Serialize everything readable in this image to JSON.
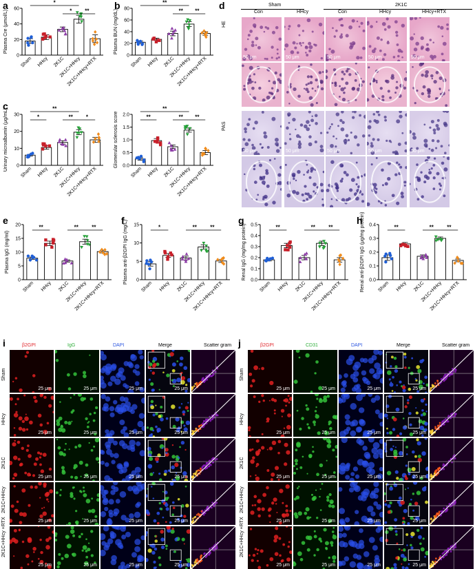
{
  "panels": {
    "a": "a",
    "b": "b",
    "c": "c",
    "d": "d",
    "e": "e",
    "f": "f",
    "g": "g",
    "h": "h",
    "i": "i",
    "j": "j"
  },
  "groups": [
    "Sham",
    "HHcy",
    "2K1C",
    "2K1C+HHcy",
    "2K1C+HHcy+RTX"
  ],
  "colors": {
    "Sham": "#1f5fd6",
    "HHcy": "#c8202a",
    "2K1C": "#8e3fa8",
    "2K1C+HHcy": "#27a23a",
    "2K1C+HHcy+RTX": "#f08c1c"
  },
  "chart_data": [
    {
      "id": "a",
      "type": "bar",
      "categories": [
        "Sham",
        "HHcy",
        "2K1C",
        "2K1C+HHcy",
        "2K1C+HHcy+RTX"
      ],
      "values": [
        18,
        23,
        33,
        46,
        21
      ],
      "errors": [
        3,
        3,
        3,
        5,
        5
      ],
      "ylabel": "Plasma Cre (μmol/L)",
      "ylim": [
        0,
        60
      ],
      "yticks": [
        0,
        20,
        40,
        60
      ],
      "markers": [
        "circle",
        "square",
        "triangle-up",
        "triangle-down",
        "diamond"
      ],
      "sig": [
        {
          "from": 0,
          "to": 3,
          "text": "*"
        },
        {
          "from": 2,
          "to": 3,
          "text": "*"
        },
        {
          "from": 3,
          "to": 4,
          "text": "**"
        }
      ]
    },
    {
      "id": "b",
      "type": "bar",
      "categories": [
        "Sham",
        "HHcy",
        "2K1C",
        "2K1C+HHcy",
        "2K1C+HHcy+RTX"
      ],
      "values": [
        22,
        27,
        37,
        53,
        37
      ],
      "errors": [
        2,
        2,
        4,
        4,
        3
      ],
      "ylabel": "Plasma BUN (mg/dL)",
      "ylim": [
        0,
        80
      ],
      "yticks": [
        0,
        20,
        40,
        60,
        80
      ],
      "markers": [
        "circle",
        "square",
        "triangle-up",
        "triangle-down",
        "diamond"
      ],
      "sig": [
        {
          "from": 0,
          "to": 3,
          "text": "**"
        },
        {
          "from": 2,
          "to": 3,
          "text": "**"
        },
        {
          "from": 3,
          "to": 4,
          "text": "**"
        }
      ]
    },
    {
      "id": "c1",
      "type": "bar",
      "categories": [
        "Sham",
        "HHcy",
        "2K1C",
        "2K1C+HHcy",
        "2K1C+HHcy+RTX"
      ],
      "values": [
        6,
        10.5,
        13.5,
        19.5,
        15
      ],
      "errors": [
        0.5,
        1,
        1,
        1.5,
        1.5
      ],
      "ylabel": "Urinary microalbumin (μg/mL)",
      "ylim": [
        0,
        30
      ],
      "yticks": [
        0,
        10,
        20,
        30
      ],
      "markers": [
        "circle",
        "square",
        "triangle-up",
        "triangle-down",
        "diamond"
      ],
      "sig": [
        {
          "from": 0,
          "to": 3,
          "text": "**"
        },
        {
          "from": 0,
          "to": 1,
          "text": "*"
        },
        {
          "from": 2,
          "to": 3,
          "text": "**"
        },
        {
          "from": 3,
          "to": 4,
          "text": "*"
        }
      ]
    },
    {
      "id": "c2",
      "type": "bar",
      "categories": [
        "Sham",
        "HHcy",
        "2K1C",
        "2K1C+HHcy",
        "2K1C+HHcy+RTX"
      ],
      "values": [
        0.25,
        0.97,
        0.73,
        1.38,
        0.5
      ],
      "errors": [
        0.05,
        0.08,
        0.07,
        0.08,
        0.08
      ],
      "ylabel": "Glomerular sclerosis score",
      "ylim": [
        0,
        2.0
      ],
      "yticks": [
        0.0,
        0.5,
        1.0,
        1.5,
        2.0
      ],
      "markers": [
        "circle",
        "square",
        "triangle-up",
        "triangle-down",
        "diamond"
      ],
      "sig": [
        {
          "from": 0,
          "to": 3,
          "text": "**"
        },
        {
          "from": 0,
          "to": 1,
          "text": "**"
        },
        {
          "from": 2,
          "to": 3,
          "text": "**"
        },
        {
          "from": 3,
          "to": 4,
          "text": "**"
        }
      ]
    },
    {
      "id": "e",
      "type": "bar",
      "categories": [
        "Sham",
        "HHcy",
        "2K1C",
        "2K1C+HHcy",
        "2K1C+HHcy+RTX"
      ],
      "values": [
        7.8,
        13.2,
        6.8,
        13.8,
        10.2
      ],
      "errors": [
        0.4,
        0.8,
        0.4,
        0.9,
        0.5
      ],
      "ylabel": "Plasma IgG (mg/ml)",
      "ylim": [
        0,
        20
      ],
      "yticks": [
        0,
        5,
        10,
        15,
        20
      ],
      "markers": [
        "circle",
        "square",
        "triangle-up",
        "triangle-down",
        "diamond"
      ],
      "sig": [
        {
          "from": 0,
          "to": 1,
          "text": "**"
        },
        {
          "from": 2,
          "to": 3,
          "text": "**"
        },
        {
          "from": 3,
          "to": 4,
          "text": "**"
        }
      ]
    },
    {
      "id": "f",
      "type": "bar",
      "categories": [
        "Sham",
        "HHcy",
        "2K1C",
        "2K1C+HHcy",
        "2K1C+HHcy+RTX"
      ],
      "values": [
        4.3,
        6.6,
        5.9,
        8.9,
        5.1
      ],
      "errors": [
        0.6,
        0.5,
        0.5,
        0.6,
        0.4
      ],
      "ylabel": "Plasma anti-β2GPI IgG (mg/L)",
      "ylim": [
        0,
        15
      ],
      "yticks": [
        0,
        5,
        10,
        15
      ],
      "markers": [
        "circle",
        "square",
        "triangle-up",
        "triangle-down",
        "diamond"
      ],
      "sig": [
        {
          "from": 0,
          "to": 1,
          "text": "*"
        },
        {
          "from": 2,
          "to": 3,
          "text": "**"
        },
        {
          "from": 3,
          "to": 4,
          "text": "**"
        }
      ]
    },
    {
      "id": "g",
      "type": "bar",
      "categories": [
        "Sham",
        "HHcy",
        "2K1C",
        "2K1C+HHcy",
        "2K1C+HHcy+RTX"
      ],
      "values": [
        0.18,
        0.31,
        0.2,
        0.33,
        0.18
      ],
      "errors": [
        0.01,
        0.02,
        0.02,
        0.02,
        0.02
      ],
      "ylabel": "Renal IgG (mg/mg protein)",
      "ylim": [
        0,
        0.5
      ],
      "yticks": [
        0.0,
        0.1,
        0.2,
        0.3,
        0.4,
        0.5
      ],
      "markers": [
        "circle",
        "square",
        "triangle-up",
        "triangle-down",
        "diamond"
      ],
      "sig": [
        {
          "from": 0,
          "to": 1,
          "text": "**"
        },
        {
          "from": 2,
          "to": 3,
          "text": "**"
        },
        {
          "from": 3,
          "to": 4,
          "text": "**"
        }
      ]
    },
    {
      "id": "h",
      "type": "bar",
      "categories": [
        "Sham",
        "HHcy",
        "2K1C",
        "2K1C+HHcy",
        "2K1C+HHcy+RTX"
      ],
      "values": [
        0.16,
        0.26,
        0.17,
        0.3,
        0.14
      ],
      "errors": [
        0.02,
        0.01,
        0.01,
        0.01,
        0.01
      ],
      "ylabel": "Renal anti-β2GPI IgG (μg/mg protein)",
      "ylim": [
        0,
        0.4
      ],
      "yticks": [
        0.0,
        0.1,
        0.2,
        0.3,
        0.4
      ],
      "markers": [
        "circle",
        "square",
        "triangle-up",
        "triangle-down",
        "diamond"
      ],
      "sig": [
        {
          "from": 0,
          "to": 1,
          "text": "**"
        },
        {
          "from": 2,
          "to": 3,
          "text": "**"
        },
        {
          "from": 3,
          "to": 4,
          "text": "**"
        }
      ]
    }
  ],
  "histology": {
    "sham_label": "Sham",
    "model_label": "2K1C",
    "columns": [
      "Con",
      "HHcy",
      "Con",
      "HHcy",
      "HHcy+RTX"
    ],
    "rows": [
      "HE",
      "PAS"
    ],
    "scale": "50 μm"
  },
  "if_i": {
    "columns": [
      "β2GPI",
      "IgG",
      "DAPI",
      "Merge",
      "Scatter gram"
    ],
    "column_colors": [
      "#e0262b",
      "#2fae3a",
      "#2a55e0",
      "#000000",
      "#000000"
    ],
    "rows": [
      "Sham",
      "HHcy",
      "2K1C",
      "2K1C+HHcy",
      "2K1C+HHcy +RTX"
    ],
    "scale": "25 μm"
  },
  "if_j": {
    "columns": [
      "β2GPI",
      "CD31",
      "DAPI",
      "Merge",
      "Scatter gram"
    ],
    "column_colors": [
      "#e0262b",
      "#2fae3a",
      "#2a55e0",
      "#000000",
      "#000000"
    ],
    "rows": [
      "Sham",
      "HHcy",
      "2K1C",
      "2K1C+HHcy",
      "2K1C+HHcy +RTX"
    ],
    "scale": "25 μm"
  }
}
